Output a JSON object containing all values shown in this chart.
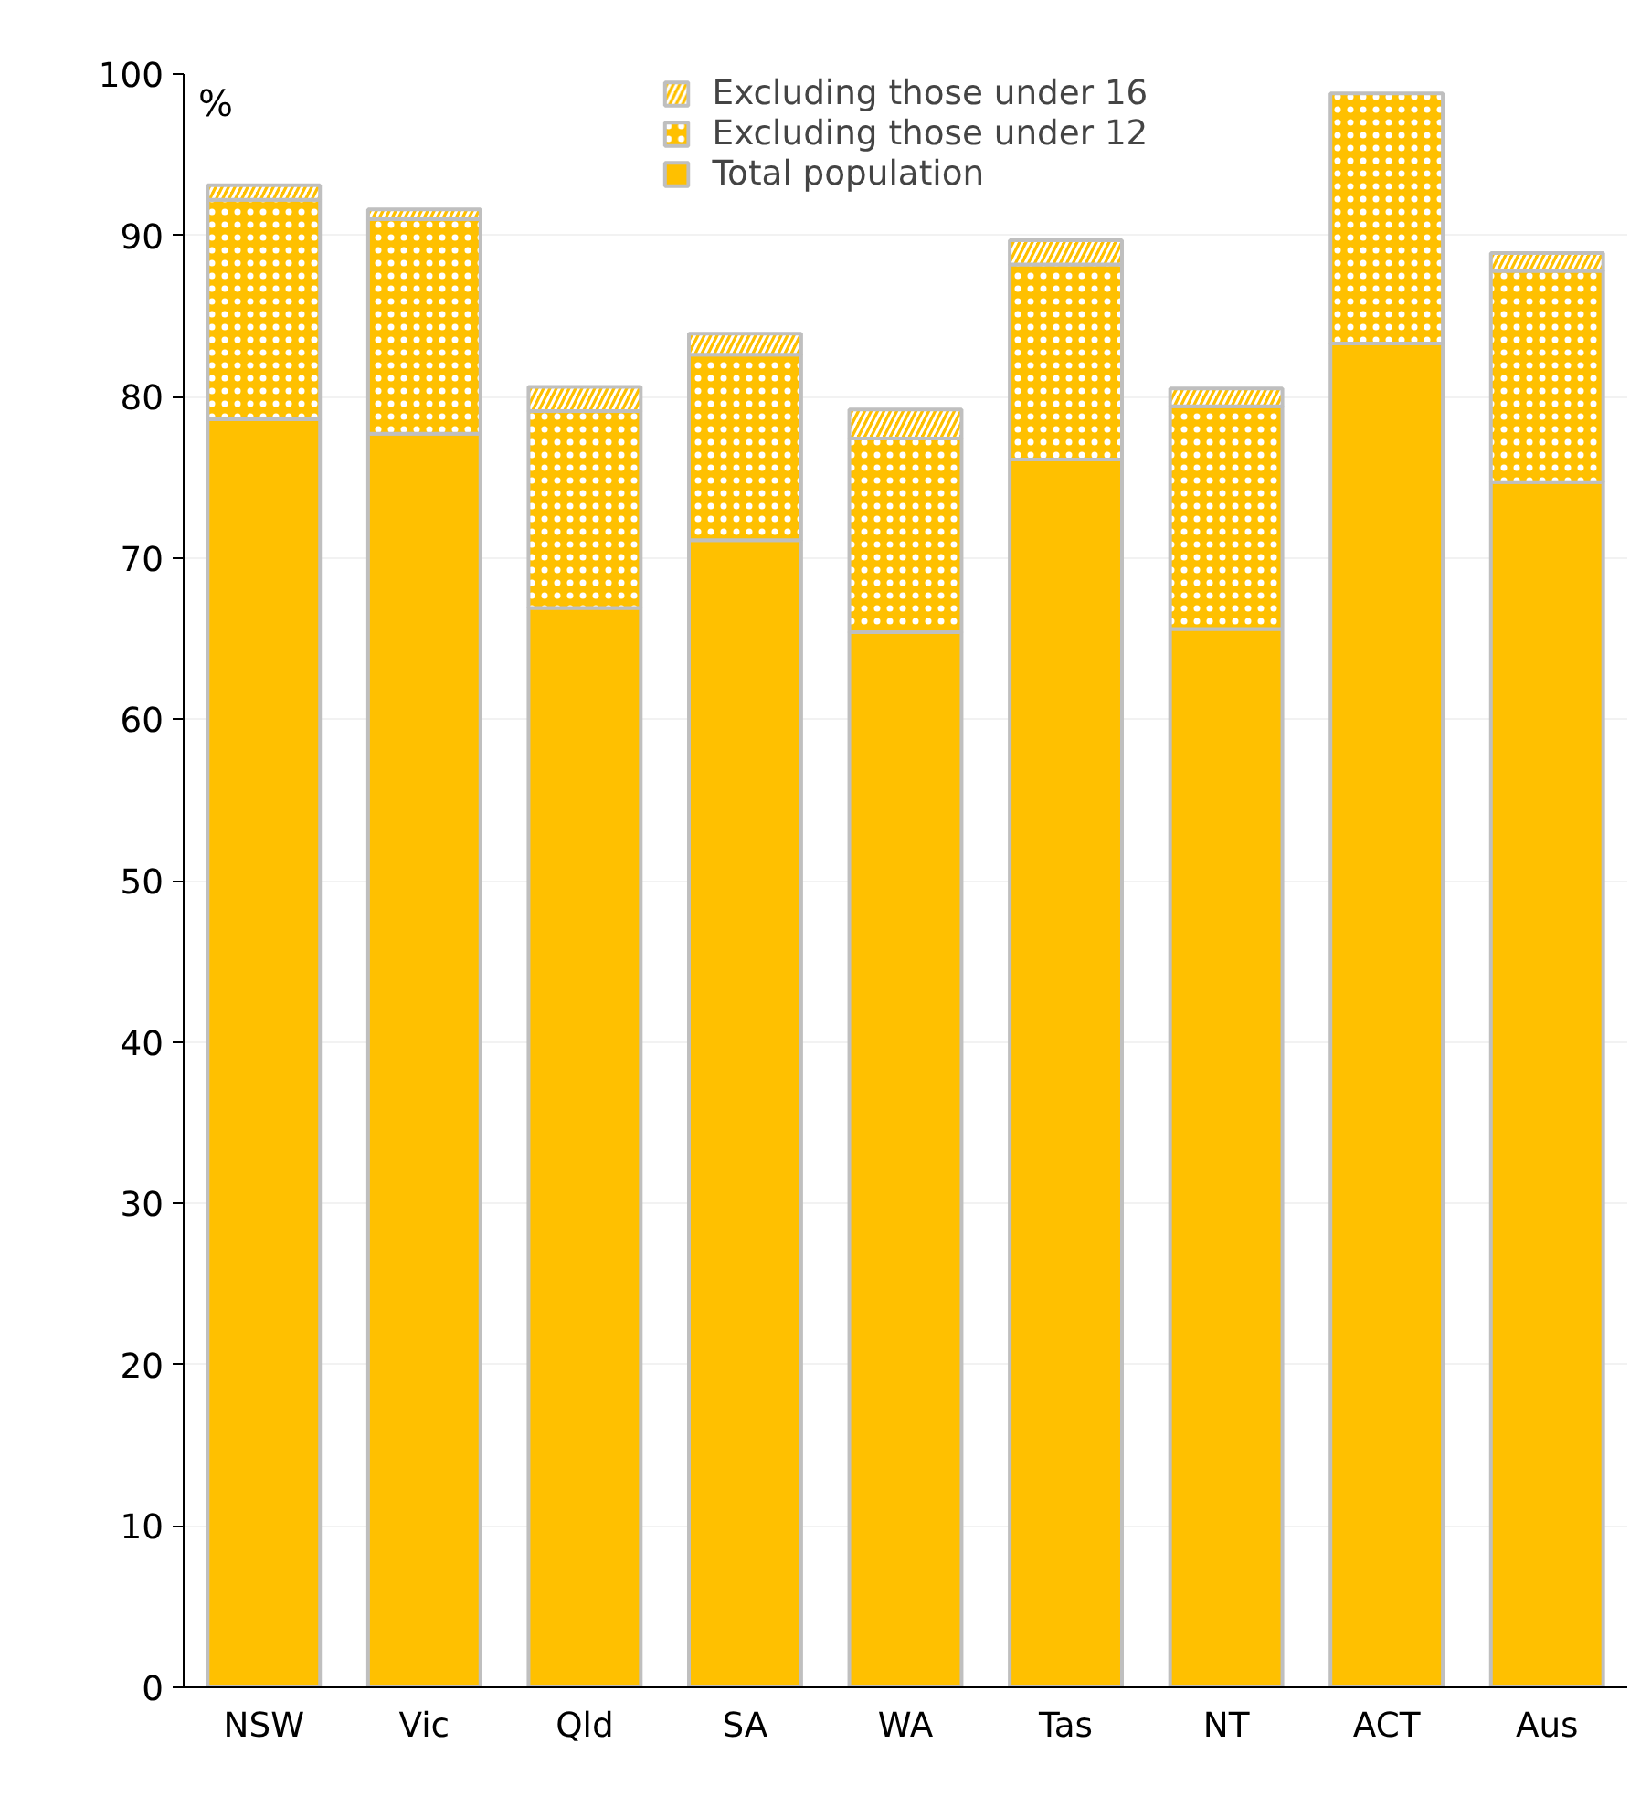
{
  "chart_data": {
    "type": "bar",
    "stacked": true,
    "ylabel": "%",
    "categories": [
      "NSW",
      "Vic",
      "Qld",
      "SA",
      "WA",
      "Tas",
      "NT",
      "ACT",
      "Aus"
    ],
    "series": [
      {
        "name": "Total population",
        "color": "#ffc000",
        "values": [
          78.6,
          77.7,
          66.9,
          71.1,
          65.4,
          76.1,
          65.6,
          83.3,
          74.7
        ]
      },
      {
        "name": "Excluding those under 12",
        "color": "#ffc000",
        "values": [
          13.6,
          13.3,
          12.2,
          11.5,
          12.0,
          12.1,
          13.8,
          15.5,
          13.1
        ]
      },
      {
        "name": "Excluding those under 16",
        "color": "#ffc000",
        "values": [
          0.9,
          0.6,
          1.5,
          1.3,
          1.8,
          1.5,
          1.1,
          null,
          1.1
        ]
      }
    ],
    "ylim": [
      0,
      100
    ],
    "yticks": [
      0,
      10,
      20,
      30,
      40,
      50,
      60,
      70,
      80,
      90,
      100
    ],
    "grid": "y",
    "legend": "top"
  }
}
